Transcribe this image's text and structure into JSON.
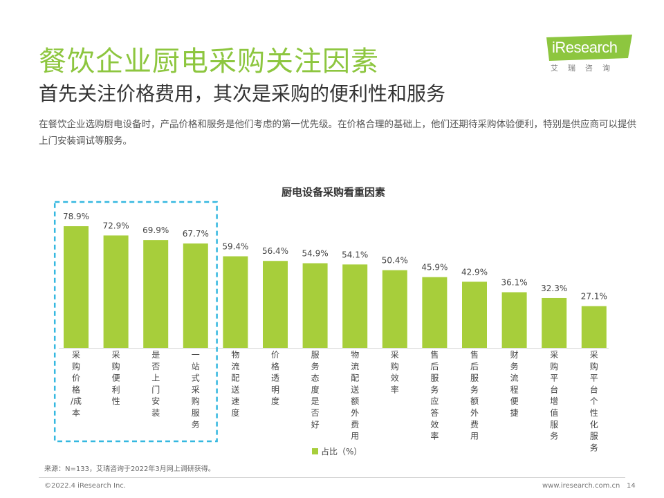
{
  "header": {
    "title": "餐饮企业厨电采购关注因素",
    "subtitle": "首先关注价格费用，其次是采购的便利性和服务",
    "description": "在餐饮企业选购厨电设备时，产品价格和服务是他们考虑的第一优先级。在价格合理的基础上，他们还期待采购体验便利，特别是供应商可以提供上门安装调试等服务。"
  },
  "logo": {
    "wordmark": "iResearch",
    "tagline": "艾瑞咨询"
  },
  "colors": {
    "accent": "#8dc63f",
    "bar": "#a7ce3b",
    "highlight_box": "#35b8e0"
  },
  "chart_data": {
    "type": "bar",
    "title": "厨电设备采购看重因素",
    "categories": [
      "采购价格/成本",
      "采购便利性",
      "是否上门安装",
      "一站式采购服务",
      "物流配送速度",
      "价格透明度",
      "服务态度是否好",
      "物流配送额外费用",
      "采购效率",
      "售后服务应答效率",
      "售后服务额外费用",
      "财务流程便捷",
      "采购平台增值服务",
      "采购平台个性化服务"
    ],
    "series": [
      {
        "name": "占比（%）",
        "values": [
          78.9,
          72.9,
          69.9,
          67.7,
          59.4,
          56.4,
          54.9,
          54.1,
          50.4,
          45.9,
          42.9,
          36.1,
          32.3,
          27.1
        ]
      }
    ],
    "value_labels": [
      "78.9%",
      "72.9%",
      "69.9%",
      "67.7%",
      "59.4%",
      "56.4%",
      "54.9%",
      "54.1%",
      "50.4%",
      "45.9%",
      "42.9%",
      "36.1%",
      "32.3%",
      "27.1%"
    ],
    "highlighted_categories": [
      0,
      1,
      2,
      3
    ],
    "legend": {
      "label": "占比（%）",
      "position": "bottom"
    },
    "ylim": [
      0,
      100
    ],
    "grid": false,
    "axes_visible": false
  },
  "footer": {
    "source": "来源：N=133，艾瑞咨询于2022年3月网上调研获得。",
    "copyright": "©2022.4 iResearch Inc.",
    "website": "www.iresearch.com.cn",
    "page_number": "14"
  }
}
